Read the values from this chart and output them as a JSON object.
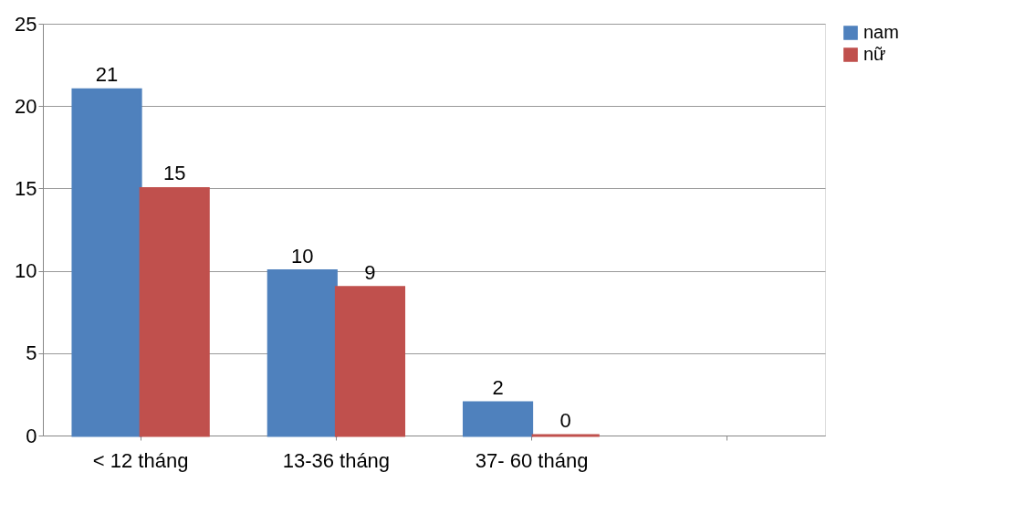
{
  "chart_data": {
    "type": "bar",
    "categories": [
      "< 12 tháng",
      "13-36 tháng",
      "37- 60 tháng",
      null
    ],
    "series": [
      {
        "name": "nam",
        "color": "#4f81bd",
        "values": [
          21,
          10,
          2,
          null
        ]
      },
      {
        "name": "nữ",
        "color": "#c0504d",
        "values": [
          15,
          9,
          0,
          null
        ]
      }
    ],
    "ylim": [
      0,
      25
    ],
    "yticks": [
      0,
      5,
      10,
      15,
      20,
      25
    ],
    "grid": "y",
    "legend": "right",
    "data_labels": true
  }
}
